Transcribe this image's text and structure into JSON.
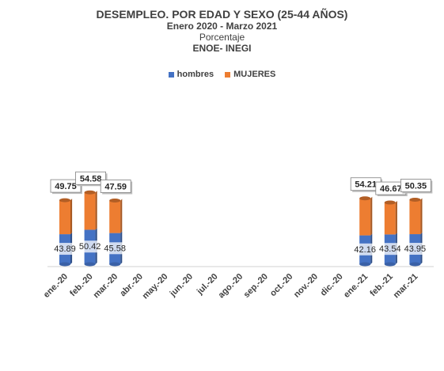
{
  "chart_data": {
    "type": "bar",
    "stacked": true,
    "title": "DESEMPLEO. POR EDAD Y SEXO (25-44 AÑOS)",
    "subtitle_1": "Enero 2020  - Marzo 2021",
    "subtitle_2": "Porcentaje",
    "subtitle_3": "ENOE-  INEGI",
    "categories": [
      "ene.-20",
      "feb.-20",
      "mar.-20",
      "abr.-20",
      "may.-20",
      "jun.-20",
      "jul.-20",
      "ago.-20",
      "sep.-20",
      "oct.-20",
      "nov.-20",
      "dic.-20",
      "ene.-21",
      "feb.-21",
      "mar.-21"
    ],
    "series": [
      {
        "name": "hombres",
        "color": "#4472C4",
        "values": [
          43.89,
          50.42,
          45.58,
          null,
          null,
          null,
          null,
          null,
          null,
          null,
          null,
          null,
          42.16,
          43.54,
          43.95
        ]
      },
      {
        "name": "MUJERES",
        "color": "#ED7D31",
        "values": [
          49.75,
          54.58,
          47.59,
          null,
          null,
          null,
          null,
          null,
          null,
          null,
          null,
          null,
          54.21,
          46.67,
          50.35
        ]
      }
    ],
    "legend_position": "top",
    "grid": false
  }
}
